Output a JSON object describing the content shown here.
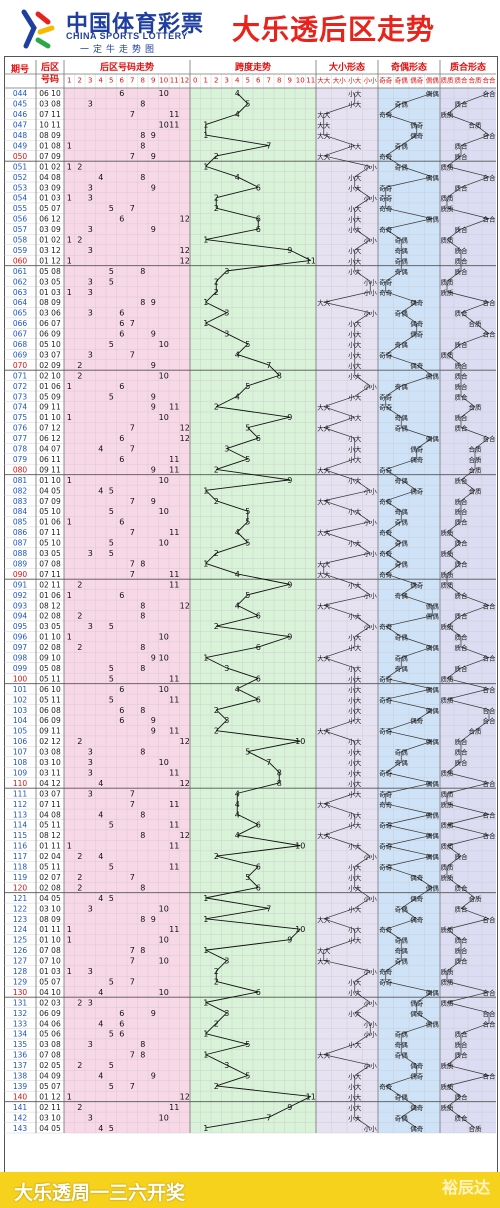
{
  "header": {
    "logo_cn": "中国体育彩票",
    "logo_en": "CHINA SPORTS LOTTERY",
    "logo_sub": "一定牛走势图",
    "title": "大乐透后区走势"
  },
  "footer": {
    "text": "大乐透周一三六开奖",
    "watermark": "裕辰达"
  },
  "colors": {
    "issue_text": "#1f55c8",
    "issue_last_in_block": "#e01010",
    "num_panel": "#f8d8e6",
    "span_panel": "#d8f3d8",
    "ratio_panel": "#dcdcf2",
    "big_small_panel": "#e6e2f2",
    "odd_even_panel": "#cfe3f8",
    "prime_panel": "#dcdcf2",
    "brand": "#1f3fa0",
    "title": "#e8231c",
    "footer": "#f7d21d"
  },
  "columns": {
    "issue": "期号",
    "back_zone_l1": "后区",
    "back_zone_l2": "号码",
    "number_trend": "后区号码走势",
    "span_trend": "跨度走势",
    "big_small": "大小形态",
    "odd_even": "奇偶形态",
    "prime_comp": "质合形态",
    "num_ticks": [
      "1",
      "2",
      "3",
      "4",
      "5",
      "6",
      "7",
      "8",
      "9",
      "10",
      "11",
      "12"
    ],
    "span_ticks": [
      "0",
      "1",
      "2",
      "3",
      "4",
      "5",
      "6",
      "7",
      "8",
      "9",
      "10",
      "11"
    ],
    "bs_sub": [
      "大大",
      "大小",
      "小大",
      "小小"
    ],
    "oe_sub": [
      "奇奇",
      "奇偶",
      "偶奇",
      "偶偶"
    ],
    "pc_sub": [
      "质质",
      "质合",
      "合质",
      "合合"
    ]
  },
  "chart_data": {
    "type": "table",
    "title": "大乐透后区走势",
    "big_threshold": 7,
    "primes": [
      1,
      2,
      3,
      5,
      7,
      11
    ],
    "draws": [
      {
        "issue": "044",
        "a": 6,
        "b": 10
      },
      {
        "issue": "045",
        "a": 3,
        "b": 8
      },
      {
        "issue": "046",
        "a": 7,
        "b": 11
      },
      {
        "issue": "047",
        "a": 10,
        "b": 11
      },
      {
        "issue": "048",
        "a": 8,
        "b": 9
      },
      {
        "issue": "049",
        "a": 1,
        "b": 8
      },
      {
        "issue": "050",
        "a": 7,
        "b": 9
      },
      {
        "issue": "051",
        "a": 1,
        "b": 2
      },
      {
        "issue": "052",
        "a": 4,
        "b": 8
      },
      {
        "issue": "053",
        "a": 3,
        "b": 9
      },
      {
        "issue": "054",
        "a": 1,
        "b": 3
      },
      {
        "issue": "055",
        "a": 5,
        "b": 7
      },
      {
        "issue": "056",
        "a": 6,
        "b": 12
      },
      {
        "issue": "057",
        "a": 3,
        "b": 9
      },
      {
        "issue": "058",
        "a": 1,
        "b": 2
      },
      {
        "issue": "059",
        "a": 3,
        "b": 12
      },
      {
        "issue": "060",
        "a": 1,
        "b": 12
      },
      {
        "issue": "061",
        "a": 5,
        "b": 8
      },
      {
        "issue": "062",
        "a": 3,
        "b": 5
      },
      {
        "issue": "063",
        "a": 1,
        "b": 3
      },
      {
        "issue": "064",
        "a": 8,
        "b": 9
      },
      {
        "issue": "065",
        "a": 3,
        "b": 6
      },
      {
        "issue": "066",
        "a": 6,
        "b": 7
      },
      {
        "issue": "067",
        "a": 6,
        "b": 9
      },
      {
        "issue": "068",
        "a": 5,
        "b": 10
      },
      {
        "issue": "069",
        "a": 3,
        "b": 7
      },
      {
        "issue": "070",
        "a": 2,
        "b": 9
      },
      {
        "issue": "071",
        "a": 2,
        "b": 10
      },
      {
        "issue": "072",
        "a": 1,
        "b": 6
      },
      {
        "issue": "073",
        "a": 5,
        "b": 9
      },
      {
        "issue": "074",
        "a": 9,
        "b": 11
      },
      {
        "issue": "075",
        "a": 1,
        "b": 10
      },
      {
        "issue": "076",
        "a": 7,
        "b": 12
      },
      {
        "issue": "077",
        "a": 6,
        "b": 12
      },
      {
        "issue": "078",
        "a": 4,
        "b": 7
      },
      {
        "issue": "079",
        "a": 6,
        "b": 11
      },
      {
        "issue": "080",
        "a": 9,
        "b": 11
      },
      {
        "issue": "081",
        "a": 1,
        "b": 10
      },
      {
        "issue": "082",
        "a": 4,
        "b": 5
      },
      {
        "issue": "083",
        "a": 7,
        "b": 9
      },
      {
        "issue": "084",
        "a": 5,
        "b": 10
      },
      {
        "issue": "085",
        "a": 1,
        "b": 6
      },
      {
        "issue": "086",
        "a": 7,
        "b": 11
      },
      {
        "issue": "087",
        "a": 5,
        "b": 10
      },
      {
        "issue": "088",
        "a": 3,
        "b": 5
      },
      {
        "issue": "089",
        "a": 7,
        "b": 8
      },
      {
        "issue": "090",
        "a": 7,
        "b": 11
      },
      {
        "issue": "091",
        "a": 2,
        "b": 11
      },
      {
        "issue": "092",
        "a": 1,
        "b": 6
      },
      {
        "issue": "093",
        "a": 8,
        "b": 12
      },
      {
        "issue": "094",
        "a": 2,
        "b": 8
      },
      {
        "issue": "095",
        "a": 3,
        "b": 5
      },
      {
        "issue": "096",
        "a": 1,
        "b": 10
      },
      {
        "issue": "097",
        "a": 2,
        "b": 8
      },
      {
        "issue": "098",
        "a": 9,
        "b": 10
      },
      {
        "issue": "099",
        "a": 5,
        "b": 8
      },
      {
        "issue": "100",
        "a": 5,
        "b": 11
      },
      {
        "issue": "101",
        "a": 6,
        "b": 10
      },
      {
        "issue": "102",
        "a": 5,
        "b": 11
      },
      {
        "issue": "103",
        "a": 6,
        "b": 8
      },
      {
        "issue": "104",
        "a": 6,
        "b": 9
      },
      {
        "issue": "105",
        "a": 9,
        "b": 11
      },
      {
        "issue": "106",
        "a": 2,
        "b": 12
      },
      {
        "issue": "107",
        "a": 3,
        "b": 8
      },
      {
        "issue": "108",
        "a": 3,
        "b": 10
      },
      {
        "issue": "109",
        "a": 3,
        "b": 11
      },
      {
        "issue": "110",
        "a": 4,
        "b": 12
      },
      {
        "issue": "111",
        "a": 3,
        "b": 7
      },
      {
        "issue": "112",
        "a": 7,
        "b": 11
      },
      {
        "issue": "113",
        "a": 4,
        "b": 8
      },
      {
        "issue": "114",
        "a": 5,
        "b": 11
      },
      {
        "issue": "115",
        "a": 8,
        "b": 12
      },
      {
        "issue": "116",
        "a": 1,
        "b": 11
      },
      {
        "issue": "117",
        "a": 2,
        "b": 4
      },
      {
        "issue": "118",
        "a": 5,
        "b": 11
      },
      {
        "issue": "119",
        "a": 2,
        "b": 7
      },
      {
        "issue": "120",
        "a": 2,
        "b": 8
      },
      {
        "issue": "121",
        "a": 4,
        "b": 5
      },
      {
        "issue": "122",
        "a": 3,
        "b": 10
      },
      {
        "issue": "123",
        "a": 8,
        "b": 9
      },
      {
        "issue": "124",
        "a": 1,
        "b": 11
      },
      {
        "issue": "125",
        "a": 1,
        "b": 10
      },
      {
        "issue": "126",
        "a": 7,
        "b": 8
      },
      {
        "issue": "127",
        "a": 7,
        "b": 10
      },
      {
        "issue": "128",
        "a": 1,
        "b": 3
      },
      {
        "issue": "129",
        "a": 5,
        "b": 7
      },
      {
        "issue": "130",
        "a": 4,
        "b": 10
      },
      {
        "issue": "131",
        "a": 2,
        "b": 3
      },
      {
        "issue": "132",
        "a": 6,
        "b": 9
      },
      {
        "issue": "133",
        "a": 4,
        "b": 6
      },
      {
        "issue": "134",
        "a": 5,
        "b": 6
      },
      {
        "issue": "135",
        "a": 3,
        "b": 8
      },
      {
        "issue": "136",
        "a": 7,
        "b": 8
      },
      {
        "issue": "137",
        "a": 2,
        "b": 5
      },
      {
        "issue": "138",
        "a": 4,
        "b": 9
      },
      {
        "issue": "139",
        "a": 5,
        "b": 7
      },
      {
        "issue": "140",
        "a": 1,
        "b": 12
      },
      {
        "issue": "141",
        "a": 2,
        "b": 11
      },
      {
        "issue": "142",
        "a": 3,
        "b": 10
      },
      {
        "issue": "143",
        "a": 4,
        "b": 5
      }
    ]
  }
}
